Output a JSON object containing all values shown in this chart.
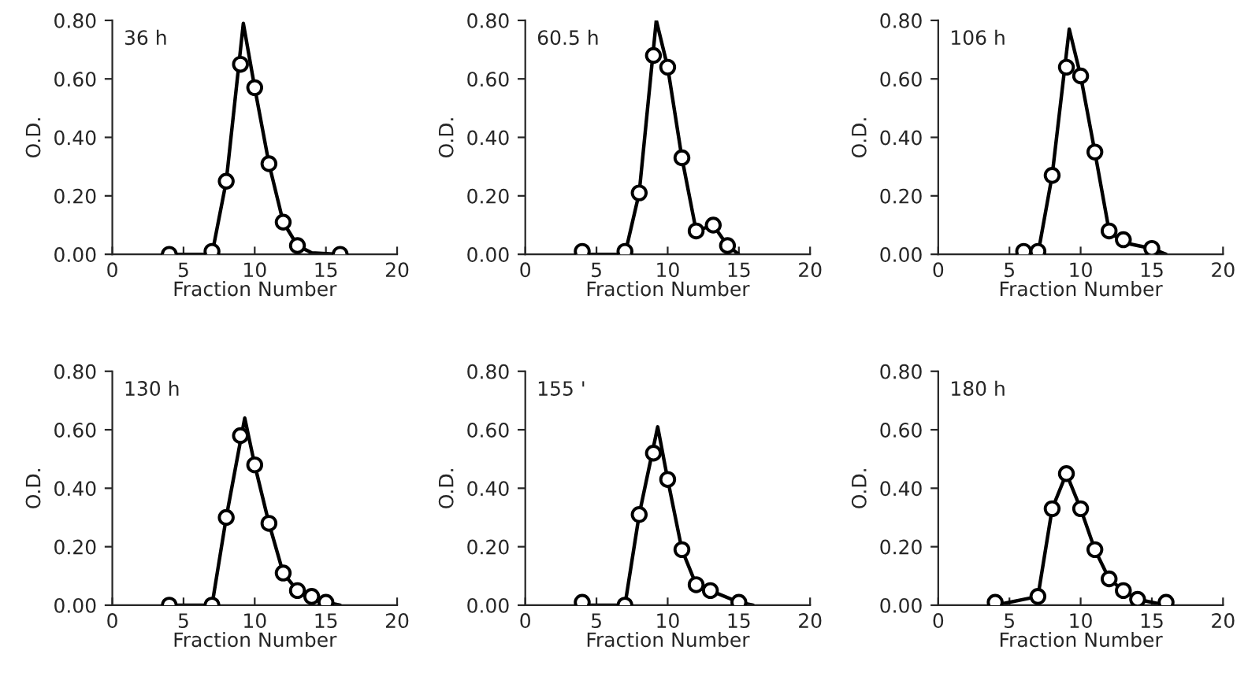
{
  "chart_data": [
    {
      "type": "line",
      "title": "36 h",
      "xlabel": "Fraction Number",
      "ylabel": "O.D.",
      "xlim": [
        0,
        20
      ],
      "ylim": [
        0,
        0.8
      ],
      "xticks": [
        0,
        5,
        10,
        15,
        20
      ],
      "yticks": [
        {
          "value": 0,
          "label": "0.00"
        },
        {
          "value": 0.2,
          "label": "0.20"
        },
        {
          "value": 0.4,
          "label": "0.40"
        },
        {
          "value": 0.6,
          "label": "0.60"
        },
        {
          "value": 0.8,
          "label": "0.80"
        }
      ],
      "grid": false,
      "legend": false,
      "series": [
        {
          "type": "line",
          "color": "#000000",
          "marker": "none",
          "x": [
            4,
            7,
            8,
            9.2,
            10,
            11,
            12,
            13,
            14,
            16
          ],
          "values": [
            0,
            0,
            0.25,
            0.79,
            0.57,
            0.31,
            0.11,
            0.03,
            0.005,
            0
          ]
        },
        {
          "type": "scatter",
          "color": "#000000",
          "marker": "circle",
          "x": [
            4,
            7,
            8,
            9,
            10,
            11,
            12,
            13,
            16
          ],
          "values": [
            0.0,
            0.01,
            0.25,
            0.65,
            0.57,
            0.31,
            0.11,
            0.03,
            0.0
          ]
        }
      ]
    },
    {
      "type": "line",
      "title": "60.5 h",
      "xlabel": "Fraction Number",
      "ylabel": "O.D.",
      "xlim": [
        0,
        20
      ],
      "ylim": [
        0,
        0.8
      ],
      "xticks": [
        0,
        5,
        10,
        15,
        20
      ],
      "yticks": [
        {
          "value": 0,
          "label": "0.00"
        },
        {
          "value": 0.2,
          "label": "0.20"
        },
        {
          "value": 0.4,
          "label": "0.40"
        },
        {
          "value": 0.6,
          "label": "0.60"
        },
        {
          "value": 0.8,
          "label": "0.80"
        }
      ],
      "grid": false,
      "legend": false,
      "series": [
        {
          "type": "line",
          "color": "#000000",
          "marker": "none",
          "x": [
            4,
            7,
            8,
            9.2,
            10,
            11,
            12,
            13.2,
            14.2,
            15
          ],
          "values": [
            0,
            0,
            0.21,
            0.8,
            0.64,
            0.33,
            0.08,
            0.1,
            0.03,
            0
          ]
        },
        {
          "type": "scatter",
          "color": "#000000",
          "marker": "circle",
          "x": [
            4,
            7,
            8,
            9,
            10,
            11,
            12,
            13.2,
            14.2
          ],
          "values": [
            0.01,
            0.01,
            0.21,
            0.68,
            0.64,
            0.33,
            0.08,
            0.1,
            0.03
          ]
        }
      ]
    },
    {
      "type": "line",
      "title": "106 h",
      "xlabel": "Fraction Number",
      "ylabel": "O.D.",
      "xlim": [
        0,
        20
      ],
      "ylim": [
        0,
        0.8
      ],
      "xticks": [
        0,
        5,
        10,
        15,
        20
      ],
      "yticks": [
        {
          "value": 0,
          "label": "0.00"
        },
        {
          "value": 0.2,
          "label": "0.20"
        },
        {
          "value": 0.4,
          "label": "0.40"
        },
        {
          "value": 0.6,
          "label": "0.60"
        },
        {
          "value": 0.8,
          "label": "0.80"
        }
      ],
      "grid": false,
      "legend": false,
      "series": [
        {
          "type": "line",
          "color": "#000000",
          "marker": "none",
          "x": [
            6,
            7,
            8,
            9.2,
            10,
            11,
            12,
            13,
            15,
            16
          ],
          "values": [
            0,
            0,
            0.27,
            0.77,
            0.61,
            0.35,
            0.08,
            0.04,
            0.02,
            0
          ]
        },
        {
          "type": "scatter",
          "color": "#000000",
          "marker": "circle",
          "x": [
            6,
            7,
            8,
            9,
            10,
            11,
            12,
            13,
            15
          ],
          "values": [
            0.01,
            0.01,
            0.27,
            0.64,
            0.61,
            0.35,
            0.08,
            0.05,
            0.02
          ]
        }
      ]
    },
    {
      "type": "line",
      "title": "130 h",
      "xlabel": "Fraction Number",
      "ylabel": "O.D.",
      "xlim": [
        0,
        20
      ],
      "ylim": [
        0,
        0.8
      ],
      "xticks": [
        0,
        5,
        10,
        15,
        20
      ],
      "yticks": [
        {
          "value": 0,
          "label": "0.00"
        },
        {
          "value": 0.2,
          "label": "0.20"
        },
        {
          "value": 0.4,
          "label": "0.40"
        },
        {
          "value": 0.6,
          "label": "0.60"
        },
        {
          "value": 0.8,
          "label": "0.80"
        }
      ],
      "grid": false,
      "legend": false,
      "series": [
        {
          "type": "line",
          "color": "#000000",
          "marker": "none",
          "x": [
            4,
            7,
            8,
            9.3,
            10,
            11,
            12,
            13,
            14,
            15,
            16
          ],
          "values": [
            0,
            0,
            0.3,
            0.64,
            0.48,
            0.28,
            0.11,
            0.05,
            0.03,
            0.01,
            0
          ]
        },
        {
          "type": "scatter",
          "color": "#000000",
          "marker": "circle",
          "x": [
            4,
            7,
            8,
            9,
            10,
            11,
            12,
            13,
            14,
            15
          ],
          "values": [
            0.0,
            0.0,
            0.3,
            0.58,
            0.48,
            0.28,
            0.11,
            0.05,
            0.03,
            0.01
          ]
        }
      ]
    },
    {
      "type": "line",
      "title": "155 '",
      "xlabel": "Fraction Number",
      "ylabel": "O.D.",
      "xlim": [
        0,
        20
      ],
      "ylim": [
        0,
        0.8
      ],
      "xticks": [
        0,
        5,
        10,
        15,
        20
      ],
      "yticks": [
        {
          "value": 0,
          "label": "0.00"
        },
        {
          "value": 0.2,
          "label": "0.20"
        },
        {
          "value": 0.4,
          "label": "0.40"
        },
        {
          "value": 0.6,
          "label": "0.60"
        },
        {
          "value": 0.8,
          "label": "0.80"
        }
      ],
      "grid": false,
      "legend": false,
      "series": [
        {
          "type": "line",
          "color": "#000000",
          "marker": "none",
          "x": [
            4,
            7,
            8,
            9.3,
            10,
            11,
            12,
            13,
            15,
            16
          ],
          "values": [
            0,
            0,
            0.31,
            0.61,
            0.43,
            0.19,
            0.07,
            0.05,
            0.01,
            0
          ]
        },
        {
          "type": "scatter",
          "color": "#000000",
          "marker": "circle",
          "x": [
            4,
            7,
            8,
            9,
            10,
            11,
            12,
            13,
            15
          ],
          "values": [
            0.01,
            0.0,
            0.31,
            0.52,
            0.43,
            0.19,
            0.07,
            0.05,
            0.01
          ]
        }
      ]
    },
    {
      "type": "line",
      "title": "180 h",
      "xlabel": "Fraction Number",
      "ylabel": "O.D.",
      "xlim": [
        0,
        20
      ],
      "ylim": [
        0,
        0.8
      ],
      "xticks": [
        0,
        5,
        10,
        15,
        20
      ],
      "yticks": [
        {
          "value": 0,
          "label": "0.00"
        },
        {
          "value": 0.2,
          "label": "0.20"
        },
        {
          "value": 0.4,
          "label": "0.40"
        },
        {
          "value": 0.6,
          "label": "0.60"
        },
        {
          "value": 0.8,
          "label": "0.80"
        }
      ],
      "grid": false,
      "legend": false,
      "series": [
        {
          "type": "line",
          "color": "#000000",
          "marker": "none",
          "x": [
            4,
            7,
            8,
            9,
            10,
            11,
            12,
            13,
            14,
            16
          ],
          "values": [
            0.0,
            0.03,
            0.33,
            0.45,
            0.33,
            0.19,
            0.09,
            0.05,
            0.02,
            0.0
          ]
        },
        {
          "type": "scatter",
          "color": "#000000",
          "marker": "circle",
          "x": [
            4,
            7,
            8,
            9,
            10,
            11,
            12,
            13,
            14,
            16
          ],
          "values": [
            0.01,
            0.03,
            0.33,
            0.45,
            0.33,
            0.19,
            0.09,
            0.05,
            0.02,
            0.01
          ]
        }
      ]
    }
  ]
}
